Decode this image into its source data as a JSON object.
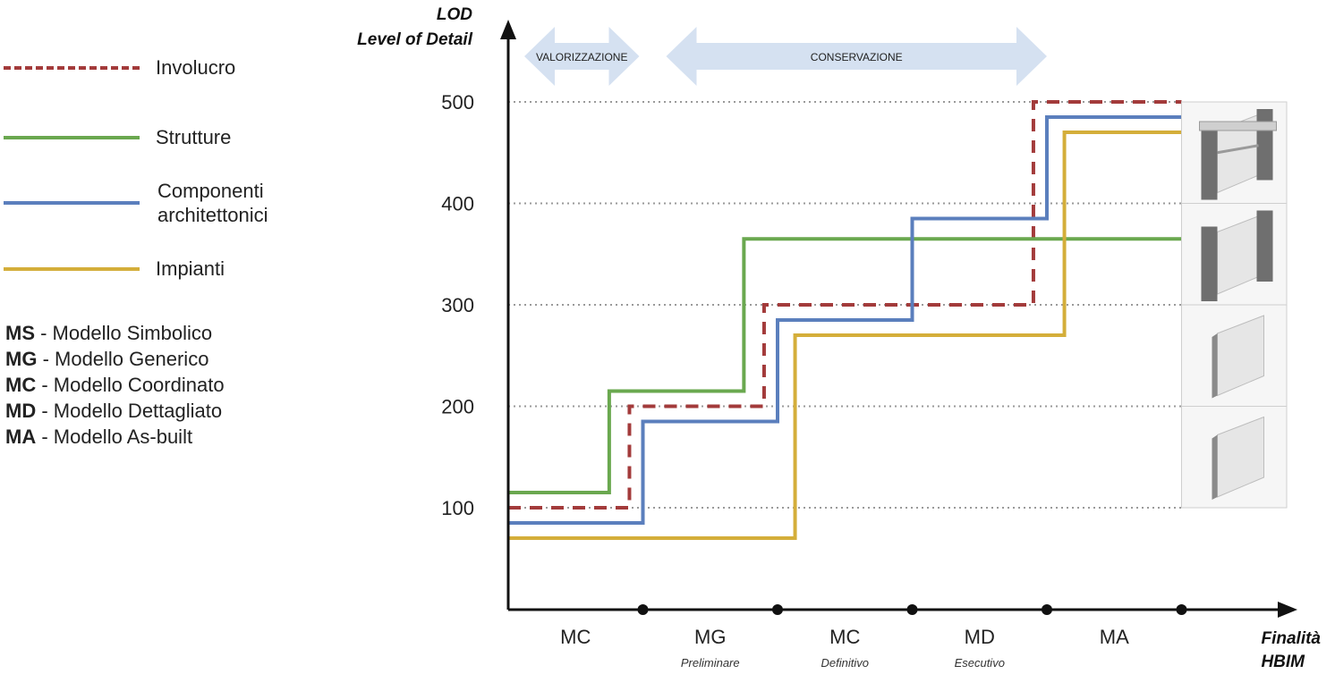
{
  "legend": {
    "items": [
      {
        "label": "Involucro",
        "color": "#a33b3b",
        "style": "dashed"
      },
      {
        "label": "Strutture",
        "color": "#6aa84f",
        "style": "solid"
      },
      {
        "label": "Componenti architettonici",
        "color": "#5b7fbd",
        "style": "solid"
      },
      {
        "label": "Impianti",
        "color": "#d4ae3a",
        "style": "solid"
      }
    ],
    "abbreviations": [
      {
        "code": "MS",
        "text": " - Modello Simbolico"
      },
      {
        "code": "MG",
        "text": " - Modello Generico"
      },
      {
        "code": "MC",
        "text": " - Modello Coordinato"
      },
      {
        "code": "MD",
        "text": " - Modello Dettagliato"
      },
      {
        "code": "MA",
        "text": " - Modello As-built"
      }
    ]
  },
  "chart_data": {
    "type": "line",
    "step": true,
    "ylabel_line1": "LOD",
    "ylabel_line2": "Level of Detail",
    "xlabel_line1": "Finalità",
    "xlabel_line2": "HBIM",
    "yticks": [
      100,
      200,
      300,
      400,
      500
    ],
    "ylim": [
      0,
      530
    ],
    "grid": "horizontal dotted",
    "phases": [
      {
        "label": "MC",
        "sublabel": ""
      },
      {
        "label": "MG",
        "sublabel": "Preliminare"
      },
      {
        "label": "MC",
        "sublabel": "Definitivo"
      },
      {
        "label": "MD",
        "sublabel": "Esecutivo"
      },
      {
        "label": "MA",
        "sublabel": ""
      }
    ],
    "ranges": [
      {
        "label": "VALORIZZAZIONE",
        "from_phase": 0,
        "to_phase": 1
      },
      {
        "label": "CONSERVAZIONE",
        "from_phase": 1,
        "to_phase": 4
      }
    ],
    "series": [
      {
        "name": "Involucro",
        "color": "#a33b3b",
        "dashed": true,
        "steps": [
          {
            "x": 0,
            "y": 100
          },
          {
            "x": 0.9,
            "y": 200
          },
          {
            "x": 1.9,
            "y": 300
          },
          {
            "x": 3.9,
            "y": 500
          },
          {
            "x": 5,
            "y": 500
          }
        ]
      },
      {
        "name": "Strutture",
        "color": "#6aa84f",
        "dashed": false,
        "steps": [
          {
            "x": 0,
            "y": 115
          },
          {
            "x": 0.75,
            "y": 215
          },
          {
            "x": 1.75,
            "y": 365
          },
          {
            "x": 5,
            "y": 365
          }
        ]
      },
      {
        "name": "Componenti architettonici",
        "color": "#5b7fbd",
        "dashed": false,
        "steps": [
          {
            "x": 0,
            "y": 85
          },
          {
            "x": 1,
            "y": 185
          },
          {
            "x": 2,
            "y": 285
          },
          {
            "x": 3,
            "y": 385
          },
          {
            "x": 4,
            "y": 485
          },
          {
            "x": 5,
            "y": 485
          }
        ]
      },
      {
        "name": "Impianti",
        "color": "#d4ae3a",
        "dashed": false,
        "steps": [
          {
            "x": 0,
            "y": 70
          },
          {
            "x": 2.13,
            "y": 270
          },
          {
            "x": 4.13,
            "y": 470
          },
          {
            "x": 5,
            "y": 470
          }
        ]
      }
    ],
    "illustration_levels": [
      500,
      400,
      300,
      200
    ]
  }
}
